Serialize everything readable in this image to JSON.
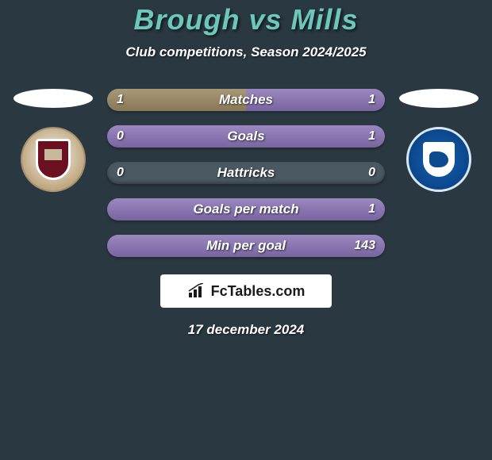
{
  "title": "Brough vs Mills",
  "subtitle": "Club competitions, Season 2024/2025",
  "colors": {
    "background": "#2a3842",
    "title": "#6bc8bb",
    "text": "#ffffff",
    "bar_track": "#4a5862",
    "bar_left": "#887858",
    "bar_right": "#7865a0",
    "logo_bg": "#ffffff"
  },
  "left_team": {
    "crest_bg": "#d8c8b0",
    "crest_shield": "#6b1020"
  },
  "right_team": {
    "crest_bg": "#0d4a90",
    "crest_shield": "#ffffff"
  },
  "stats": [
    {
      "label": "Matches",
      "left_val": "1",
      "right_val": "1",
      "left_pct": 50,
      "right_pct": 50
    },
    {
      "label": "Goals",
      "left_val": "0",
      "right_val": "1",
      "left_pct": 0,
      "right_pct": 100
    },
    {
      "label": "Hattricks",
      "left_val": "0",
      "right_val": "0",
      "left_pct": 0,
      "right_pct": 0
    },
    {
      "label": "Goals per match",
      "left_val": "",
      "right_val": "1",
      "left_pct": 0,
      "right_pct": 100
    },
    {
      "label": "Min per goal",
      "left_val": "",
      "right_val": "143",
      "left_pct": 0,
      "right_pct": 100
    }
  ],
  "logo_text": "FcTables.com",
  "date": "17 december 2024"
}
